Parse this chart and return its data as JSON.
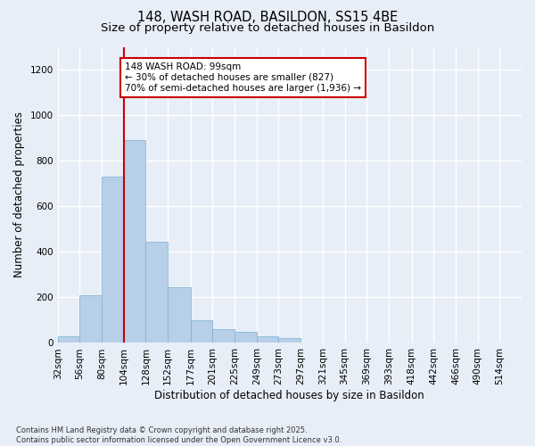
{
  "title1": "148, WASH ROAD, BASILDON, SS15 4BE",
  "title2": "Size of property relative to detached houses in Basildon",
  "xlabel": "Distribution of detached houses by size in Basildon",
  "ylabel": "Number of detached properties",
  "footnote": "Contains HM Land Registry data © Crown copyright and database right 2025.\nContains public sector information licensed under the Open Government Licence v3.0.",
  "bins": [
    "32sqm",
    "56sqm",
    "80sqm",
    "104sqm",
    "128sqm",
    "152sqm",
    "177sqm",
    "201sqm",
    "225sqm",
    "249sqm",
    "273sqm",
    "297sqm",
    "321sqm",
    "345sqm",
    "369sqm",
    "393sqm",
    "418sqm",
    "442sqm",
    "466sqm",
    "490sqm",
    "514sqm"
  ],
  "bin_edges": [
    32,
    56,
    80,
    104,
    128,
    152,
    177,
    201,
    225,
    249,
    273,
    297,
    321,
    345,
    369,
    393,
    418,
    442,
    466,
    490,
    514
  ],
  "bar_heights": [
    30,
    210,
    730,
    890,
    445,
    245,
    100,
    60,
    50,
    30,
    20,
    0,
    0,
    0,
    0,
    0,
    0,
    0,
    0,
    0
  ],
  "bar_color": "#b8cfe8",
  "bar_edgecolor": "#7aafd4",
  "redline_x": 104,
  "annotation_text": "148 WASH ROAD: 99sqm\n← 30% of detached houses are smaller (827)\n70% of semi-detached houses are larger (1,936) →",
  "annotation_box_color": "white",
  "annotation_box_edgecolor": "#cc0000",
  "redline_color": "#cc0000",
  "ylim": [
    0,
    1300
  ],
  "yticks": [
    0,
    200,
    400,
    600,
    800,
    1000,
    1200
  ],
  "background_color": "#e8eef8",
  "grid_color": "white",
  "title_fontsize": 10.5,
  "subtitle_fontsize": 9.5,
  "annotation_fontsize": 7.5,
  "axis_label_fontsize": 8.5,
  "tick_fontsize": 7.5
}
